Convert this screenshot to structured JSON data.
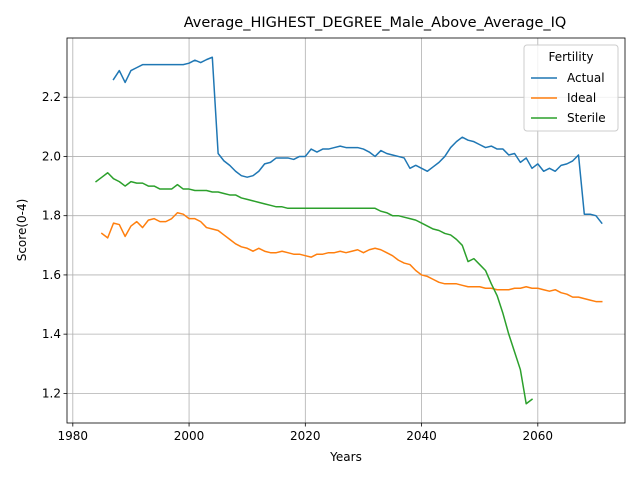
{
  "chart_data": {
    "type": "line",
    "title": "Average_HIGHEST_DEGREE_Male_Above_Average_IQ",
    "xlabel": "Years",
    "ylabel": "Score(0-4)",
    "xlim": [
      1979,
      2075
    ],
    "ylim": [
      1.1,
      2.4
    ],
    "xticks": [
      1980,
      2000,
      2020,
      2040,
      2060
    ],
    "yticks": [
      1.2,
      1.4,
      1.6,
      1.8,
      2.0,
      2.2
    ],
    "grid": true,
    "legend": {
      "title": "Fertility",
      "position": "top-right"
    },
    "series": [
      {
        "name": "Actual",
        "color": "#1f77b4",
        "points": [
          [
            1987,
            2.26
          ],
          [
            1988,
            2.29
          ],
          [
            1989,
            2.25
          ],
          [
            1990,
            2.29
          ],
          [
            1991,
            2.3
          ],
          [
            1992,
            2.31
          ],
          [
            1993,
            2.31
          ],
          [
            1994,
            2.31
          ],
          [
            1995,
            2.31
          ],
          [
            1996,
            2.31
          ],
          [
            1997,
            2.31
          ],
          [
            1998,
            2.31
          ],
          [
            1999,
            2.31
          ],
          [
            2000,
            2.315
          ],
          [
            2001,
            2.325
          ],
          [
            2002,
            2.317
          ],
          [
            2003,
            2.327
          ],
          [
            2004,
            2.335
          ],
          [
            2005,
            2.01
          ],
          [
            2006,
            1.985
          ],
          [
            2007,
            1.97
          ],
          [
            2008,
            1.95
          ],
          [
            2009,
            1.935
          ],
          [
            2010,
            1.93
          ],
          [
            2011,
            1.935
          ],
          [
            2012,
            1.95
          ],
          [
            2013,
            1.975
          ],
          [
            2014,
            1.98
          ],
          [
            2015,
            1.995
          ],
          [
            2016,
            1.995
          ],
          [
            2017,
            1.995
          ],
          [
            2018,
            1.99
          ],
          [
            2019,
            2.0
          ],
          [
            2020,
            2.0
          ],
          [
            2021,
            2.025
          ],
          [
            2022,
            2.015
          ],
          [
            2023,
            2.025
          ],
          [
            2024,
            2.025
          ],
          [
            2025,
            2.03
          ],
          [
            2026,
            2.035
          ],
          [
            2027,
            2.03
          ],
          [
            2028,
            2.03
          ],
          [
            2029,
            2.03
          ],
          [
            2030,
            2.025
          ],
          [
            2031,
            2.015
          ],
          [
            2032,
            2.0
          ],
          [
            2033,
            2.02
          ],
          [
            2034,
            2.01
          ],
          [
            2035,
            2.005
          ],
          [
            2036,
            2.0
          ],
          [
            2037,
            1.995
          ],
          [
            2038,
            1.96
          ],
          [
            2039,
            1.97
          ],
          [
            2040,
            1.96
          ],
          [
            2041,
            1.95
          ],
          [
            2042,
            1.965
          ],
          [
            2043,
            1.98
          ],
          [
            2044,
            2.0
          ],
          [
            2045,
            2.03
          ],
          [
            2046,
            2.05
          ],
          [
            2047,
            2.065
          ],
          [
            2048,
            2.055
          ],
          [
            2049,
            2.05
          ],
          [
            2050,
            2.04
          ],
          [
            2051,
            2.03
          ],
          [
            2052,
            2.035
          ],
          [
            2053,
            2.025
          ],
          [
            2054,
            2.025
          ],
          [
            2055,
            2.005
          ],
          [
            2056,
            2.01
          ],
          [
            2057,
            1.98
          ],
          [
            2058,
            1.995
          ],
          [
            2059,
            1.96
          ],
          [
            2060,
            1.975
          ],
          [
            2061,
            1.95
          ],
          [
            2062,
            1.96
          ],
          [
            2063,
            1.95
          ],
          [
            2064,
            1.97
          ],
          [
            2065,
            1.975
          ],
          [
            2066,
            1.985
          ],
          [
            2067,
            2.005
          ],
          [
            2068,
            1.805
          ],
          [
            2069,
            1.805
          ],
          [
            2070,
            1.8
          ],
          [
            2071,
            1.775
          ]
        ]
      },
      {
        "name": "Ideal",
        "color": "#ff7f0e",
        "points": [
          [
            1985,
            1.74
          ],
          [
            1986,
            1.725
          ],
          [
            1987,
            1.775
          ],
          [
            1988,
            1.77
          ],
          [
            1989,
            1.73
          ],
          [
            1990,
            1.765
          ],
          [
            1991,
            1.78
          ],
          [
            1992,
            1.76
          ],
          [
            1993,
            1.785
          ],
          [
            1994,
            1.79
          ],
          [
            1995,
            1.78
          ],
          [
            1996,
            1.78
          ],
          [
            1997,
            1.79
          ],
          [
            1998,
            1.81
          ],
          [
            1999,
            1.805
          ],
          [
            2000,
            1.79
          ],
          [
            2001,
            1.79
          ],
          [
            2002,
            1.78
          ],
          [
            2003,
            1.76
          ],
          [
            2004,
            1.755
          ],
          [
            2005,
            1.75
          ],
          [
            2006,
            1.735
          ],
          [
            2007,
            1.72
          ],
          [
            2008,
            1.705
          ],
          [
            2009,
            1.695
          ],
          [
            2010,
            1.69
          ],
          [
            2011,
            1.68
          ],
          [
            2012,
            1.69
          ],
          [
            2013,
            1.68
          ],
          [
            2014,
            1.675
          ],
          [
            2015,
            1.675
          ],
          [
            2016,
            1.68
          ],
          [
            2017,
            1.675
          ],
          [
            2018,
            1.67
          ],
          [
            2019,
            1.67
          ],
          [
            2020,
            1.665
          ],
          [
            2021,
            1.66
          ],
          [
            2022,
            1.67
          ],
          [
            2023,
            1.67
          ],
          [
            2024,
            1.675
          ],
          [
            2025,
            1.675
          ],
          [
            2026,
            1.68
          ],
          [
            2027,
            1.675
          ],
          [
            2028,
            1.68
          ],
          [
            2029,
            1.685
          ],
          [
            2030,
            1.675
          ],
          [
            2031,
            1.685
          ],
          [
            2032,
            1.69
          ],
          [
            2033,
            1.685
          ],
          [
            2034,
            1.675
          ],
          [
            2035,
            1.665
          ],
          [
            2036,
            1.65
          ],
          [
            2037,
            1.64
          ],
          [
            2038,
            1.635
          ],
          [
            2039,
            1.615
          ],
          [
            2040,
            1.6
          ],
          [
            2041,
            1.595
          ],
          [
            2042,
            1.585
          ],
          [
            2043,
            1.575
          ],
          [
            2044,
            1.57
          ],
          [
            2045,
            1.57
          ],
          [
            2046,
            1.57
          ],
          [
            2047,
            1.565
          ],
          [
            2048,
            1.56
          ],
          [
            2049,
            1.56
          ],
          [
            2050,
            1.56
          ],
          [
            2051,
            1.555
          ],
          [
            2052,
            1.555
          ],
          [
            2053,
            1.55
          ],
          [
            2054,
            1.55
          ],
          [
            2055,
            1.55
          ],
          [
            2056,
            1.555
          ],
          [
            2057,
            1.555
          ],
          [
            2058,
            1.56
          ],
          [
            2059,
            1.555
          ],
          [
            2060,
            1.555
          ],
          [
            2061,
            1.55
          ],
          [
            2062,
            1.545
          ],
          [
            2063,
            1.55
          ],
          [
            2064,
            1.54
          ],
          [
            2065,
            1.535
          ],
          [
            2066,
            1.525
          ],
          [
            2067,
            1.525
          ],
          [
            2068,
            1.52
          ],
          [
            2069,
            1.515
          ],
          [
            2070,
            1.51
          ],
          [
            2071,
            1.51
          ]
        ]
      },
      {
        "name": "Sterile",
        "color": "#2ca02c",
        "points": [
          [
            1984,
            1.915
          ],
          [
            1985,
            1.93
          ],
          [
            1986,
            1.945
          ],
          [
            1987,
            1.925
          ],
          [
            1988,
            1.915
          ],
          [
            1989,
            1.9
          ],
          [
            1990,
            1.915
          ],
          [
            1991,
            1.91
          ],
          [
            1992,
            1.91
          ],
          [
            1993,
            1.9
          ],
          [
            1994,
            1.9
          ],
          [
            1995,
            1.89
          ],
          [
            1996,
            1.89
          ],
          [
            1997,
            1.89
          ],
          [
            1998,
            1.905
          ],
          [
            1999,
            1.89
          ],
          [
            2000,
            1.89
          ],
          [
            2001,
            1.885
          ],
          [
            2002,
            1.885
          ],
          [
            2003,
            1.885
          ],
          [
            2004,
            1.88
          ],
          [
            2005,
            1.88
          ],
          [
            2006,
            1.875
          ],
          [
            2007,
            1.87
          ],
          [
            2008,
            1.87
          ],
          [
            2009,
            1.86
          ],
          [
            2010,
            1.855
          ],
          [
            2011,
            1.85
          ],
          [
            2012,
            1.845
          ],
          [
            2013,
            1.84
          ],
          [
            2014,
            1.835
          ],
          [
            2015,
            1.83
          ],
          [
            2016,
            1.83
          ],
          [
            2017,
            1.825
          ],
          [
            2018,
            1.825
          ],
          [
            2019,
            1.825
          ],
          [
            2020,
            1.825
          ],
          [
            2021,
            1.825
          ],
          [
            2022,
            1.825
          ],
          [
            2023,
            1.825
          ],
          [
            2024,
            1.825
          ],
          [
            2025,
            1.825
          ],
          [
            2026,
            1.825
          ],
          [
            2027,
            1.825
          ],
          [
            2028,
            1.825
          ],
          [
            2029,
            1.825
          ],
          [
            2030,
            1.825
          ],
          [
            2031,
            1.825
          ],
          [
            2032,
            1.825
          ],
          [
            2033,
            1.815
          ],
          [
            2034,
            1.81
          ],
          [
            2035,
            1.8
          ],
          [
            2036,
            1.8
          ],
          [
            2037,
            1.795
          ],
          [
            2038,
            1.79
          ],
          [
            2039,
            1.785
          ],
          [
            2040,
            1.775
          ],
          [
            2041,
            1.765
          ],
          [
            2042,
            1.755
          ],
          [
            2043,
            1.75
          ],
          [
            2044,
            1.74
          ],
          [
            2045,
            1.735
          ],
          [
            2046,
            1.72
          ],
          [
            2047,
            1.7
          ],
          [
            2048,
            1.645
          ],
          [
            2049,
            1.655
          ],
          [
            2050,
            1.635
          ],
          [
            2051,
            1.615
          ],
          [
            2052,
            1.57
          ],
          [
            2053,
            1.53
          ],
          [
            2054,
            1.47
          ],
          [
            2055,
            1.4
          ],
          [
            2056,
            1.34
          ],
          [
            2057,
            1.28
          ],
          [
            2058,
            1.165
          ],
          [
            2059,
            1.18
          ]
        ]
      }
    ]
  }
}
